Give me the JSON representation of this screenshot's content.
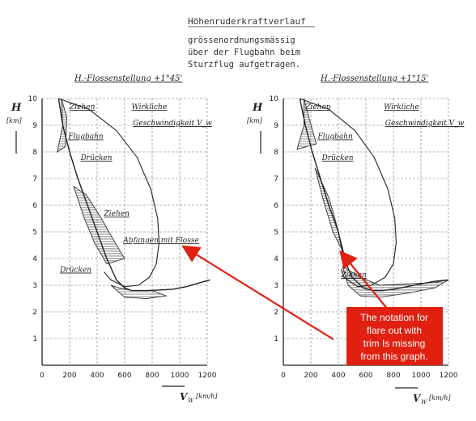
{
  "header": {
    "title": "Höhenruderkraftverlauf",
    "line1": "grössenordnungsmässig",
    "line2": "über der Flugbahn beim",
    "line3": "Sturzflug aufgetragen."
  },
  "colors": {
    "ink": "#222222",
    "paper": "#ffffff",
    "hatch": "#333333",
    "arrow": "#e02010",
    "note_bg": "#e02010",
    "note_text": "#ffffff"
  },
  "chart_data": [
    {
      "type": "line",
      "title": "H.-Flossenstellung +1°45'",
      "xlabel": "V_w [km/h]",
      "xlabel_main": "V",
      "xlabel_sub": "W",
      "xlabel_unit": "[km/h]",
      "ylabel": "H [km]",
      "ylabel_main": "H",
      "ylabel_unit": "[km]",
      "xlim": [
        0,
        1200
      ],
      "ylim": [
        0,
        10
      ],
      "x_ticks": [
        "0",
        "200",
        "400",
        "600",
        "800",
        "1000",
        "1200"
      ],
      "y_ticks": [
        "1",
        "2",
        "3",
        "4",
        "5",
        "6",
        "7",
        "8",
        "9",
        "10"
      ],
      "grid": true,
      "series": [
        {
          "name": "Flugbahn",
          "x": [
            120,
            150,
            200,
            260,
            330,
            400,
            470,
            540,
            600,
            650,
            700,
            760,
            850,
            950,
            1050,
            1150,
            1220
          ],
          "y": [
            10,
            9,
            8,
            7,
            6,
            5,
            4,
            3.2,
            2.9,
            2.8,
            2.8,
            2.8,
            2.82,
            2.85,
            2.95,
            3.1,
            3.2
          ]
        },
        {
          "name": "Wirkliche Geschwindigkeit V_w",
          "x": [
            120,
            340,
            540,
            690,
            790,
            840,
            850,
            830,
            780,
            700,
            600,
            500,
            450
          ],
          "y": [
            10,
            9.6,
            8.8,
            7.8,
            6.6,
            5.5,
            4.6,
            3.8,
            3.3,
            3.0,
            2.95,
            3.2,
            3.5
          ]
        }
      ],
      "annotations": [
        "Ziehen",
        "Flugbahn",
        "Drücken",
        "Ziehen",
        "Abfangen mit Flosse",
        "Drücken",
        "Wirkliche",
        "Geschwindigkeit V_w"
      ]
    },
    {
      "type": "line",
      "title": "H.-Flossenstellung +1°15'",
      "xlabel": "V_w [km/h]",
      "xlabel_main": "V",
      "xlabel_sub": "W",
      "xlabel_unit": "[km/h]",
      "ylabel": "H [km]",
      "ylabel_main": "H",
      "ylabel_unit": "[km]",
      "xlim": [
        0,
        1200
      ],
      "ylim": [
        0,
        10
      ],
      "x_ticks": [
        "0",
        "200",
        "400",
        "600",
        "800",
        "1000",
        "1200"
      ],
      "y_ticks": [
        "1",
        "2",
        "3",
        "4",
        "5",
        "6",
        "7",
        "8",
        "9",
        "10"
      ],
      "grid": true,
      "series": [
        {
          "name": "Flugbahn",
          "x": [
            120,
            160,
            210,
            270,
            330,
            400,
            440,
            500,
            580,
            650,
            720,
            800,
            900,
            1000,
            1100,
            1200
          ],
          "y": [
            10,
            9,
            8,
            7,
            6,
            5,
            4,
            3.3,
            2.9,
            2.8,
            2.8,
            2.85,
            2.95,
            3.05,
            3.15,
            3.2
          ]
        },
        {
          "name": "Wirkliche Geschwindigkeit V_w",
          "x": [
            120,
            330,
            520,
            660,
            760,
            810,
            820,
            800,
            740,
            640,
            540,
            440,
            420
          ],
          "y": [
            10,
            9.6,
            8.8,
            7.8,
            6.6,
            5.5,
            4.6,
            3.8,
            3.3,
            3.0,
            2.95,
            3.3,
            3.6
          ]
        }
      ],
      "annotations": [
        "Ziehen",
        "Flugbahn",
        "Drücken",
        "Ziehen",
        "Wirkliche",
        "Geschwindigkeit V_w"
      ]
    }
  ],
  "callout": {
    "line1": "The notation for",
    "line2": "flare out  with",
    "line3": "trim Is missing",
    "line4": "from this graph."
  }
}
